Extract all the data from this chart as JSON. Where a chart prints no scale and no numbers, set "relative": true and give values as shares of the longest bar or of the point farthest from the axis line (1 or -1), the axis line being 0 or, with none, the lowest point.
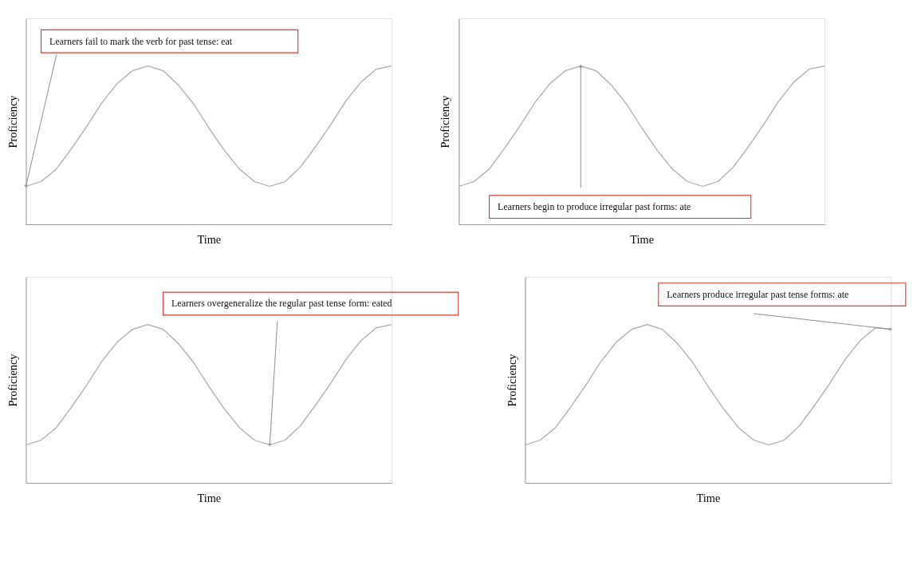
{
  "chart_data": [
    {
      "type": "line",
      "relative": true,
      "xlabel": "Time",
      "ylabel": "Proficiency",
      "grid": false,
      "legend": false,
      "tick_labels": false,
      "categories": [
        null,
        null,
        null,
        null,
        null,
        null,
        null,
        null,
        null,
        null,
        null,
        null,
        null,
        null,
        null,
        null,
        null,
        null,
        null,
        null,
        null,
        null,
        null,
        null,
        null
      ],
      "series": [
        {
          "color": "#aaaaaa",
          "values": [
            0.24,
            0.27,
            0.35,
            0.48,
            0.62,
            0.77,
            0.89,
            0.97,
            1.0,
            0.97,
            0.88,
            0.76,
            0.61,
            0.47,
            0.35,
            0.27,
            0.24,
            0.27,
            0.36,
            0.49,
            0.63,
            0.78,
            0.9,
            0.98,
            1.0
          ]
        }
      ],
      "annotations": [
        "Learners fail to mark the verb for past tense: eat"
      ]
    },
    {
      "type": "line",
      "relative": true,
      "xlabel": "Time",
      "ylabel": "Proficiency",
      "grid": false,
      "legend": false,
      "tick_labels": false,
      "categories": [
        null,
        null,
        null,
        null,
        null,
        null,
        null,
        null,
        null,
        null,
        null,
        null,
        null,
        null,
        null,
        null,
        null,
        null,
        null,
        null,
        null,
        null,
        null,
        null,
        null
      ],
      "series": [
        {
          "color": "#aaaaaa",
          "values": [
            0.24,
            0.27,
            0.35,
            0.48,
            0.62,
            0.77,
            0.89,
            0.97,
            1.0,
            0.97,
            0.88,
            0.76,
            0.61,
            0.47,
            0.35,
            0.27,
            0.24,
            0.27,
            0.36,
            0.49,
            0.63,
            0.78,
            0.9,
            0.98,
            1.0
          ]
        }
      ],
      "annotations": [
        "Learners begin to produce irregular past forms: ate"
      ]
    },
    {
      "type": "line",
      "relative": true,
      "xlabel": "Time",
      "ylabel": "Proficiency",
      "grid": false,
      "legend": false,
      "tick_labels": false,
      "categories": [
        null,
        null,
        null,
        null,
        null,
        null,
        null,
        null,
        null,
        null,
        null,
        null,
        null,
        null,
        null,
        null,
        null,
        null,
        null,
        null,
        null,
        null,
        null,
        null,
        null
      ],
      "series": [
        {
          "color": "#aaaaaa",
          "values": [
            0.24,
            0.27,
            0.35,
            0.48,
            0.62,
            0.77,
            0.89,
            0.97,
            1.0,
            0.97,
            0.88,
            0.76,
            0.61,
            0.47,
            0.35,
            0.27,
            0.24,
            0.27,
            0.36,
            0.49,
            0.63,
            0.78,
            0.9,
            0.98,
            1.0
          ]
        }
      ],
      "annotations": [
        "Learners overgeneralize the regular past tense form: eated"
      ]
    },
    {
      "type": "line",
      "relative": true,
      "xlabel": "Time",
      "ylabel": "Proficiency",
      "grid": false,
      "legend": false,
      "tick_labels": false,
      "categories": [
        null,
        null,
        null,
        null,
        null,
        null,
        null,
        null,
        null,
        null,
        null,
        null,
        null,
        null,
        null,
        null,
        null,
        null,
        null,
        null,
        null,
        null,
        null,
        null,
        null
      ],
      "series": [
        {
          "color": "#aaaaaa",
          "values": [
            0.24,
            0.27,
            0.35,
            0.48,
            0.62,
            0.77,
            0.89,
            0.97,
            1.0,
            0.97,
            0.88,
            0.76,
            0.61,
            0.47,
            0.35,
            0.27,
            0.24,
            0.27,
            0.36,
            0.49,
            0.63,
            0.78,
            0.9,
            0.98,
            0.97
          ]
        }
      ],
      "annotations": [
        "Learners produce irregular past tense forms: ate"
      ]
    }
  ]
}
